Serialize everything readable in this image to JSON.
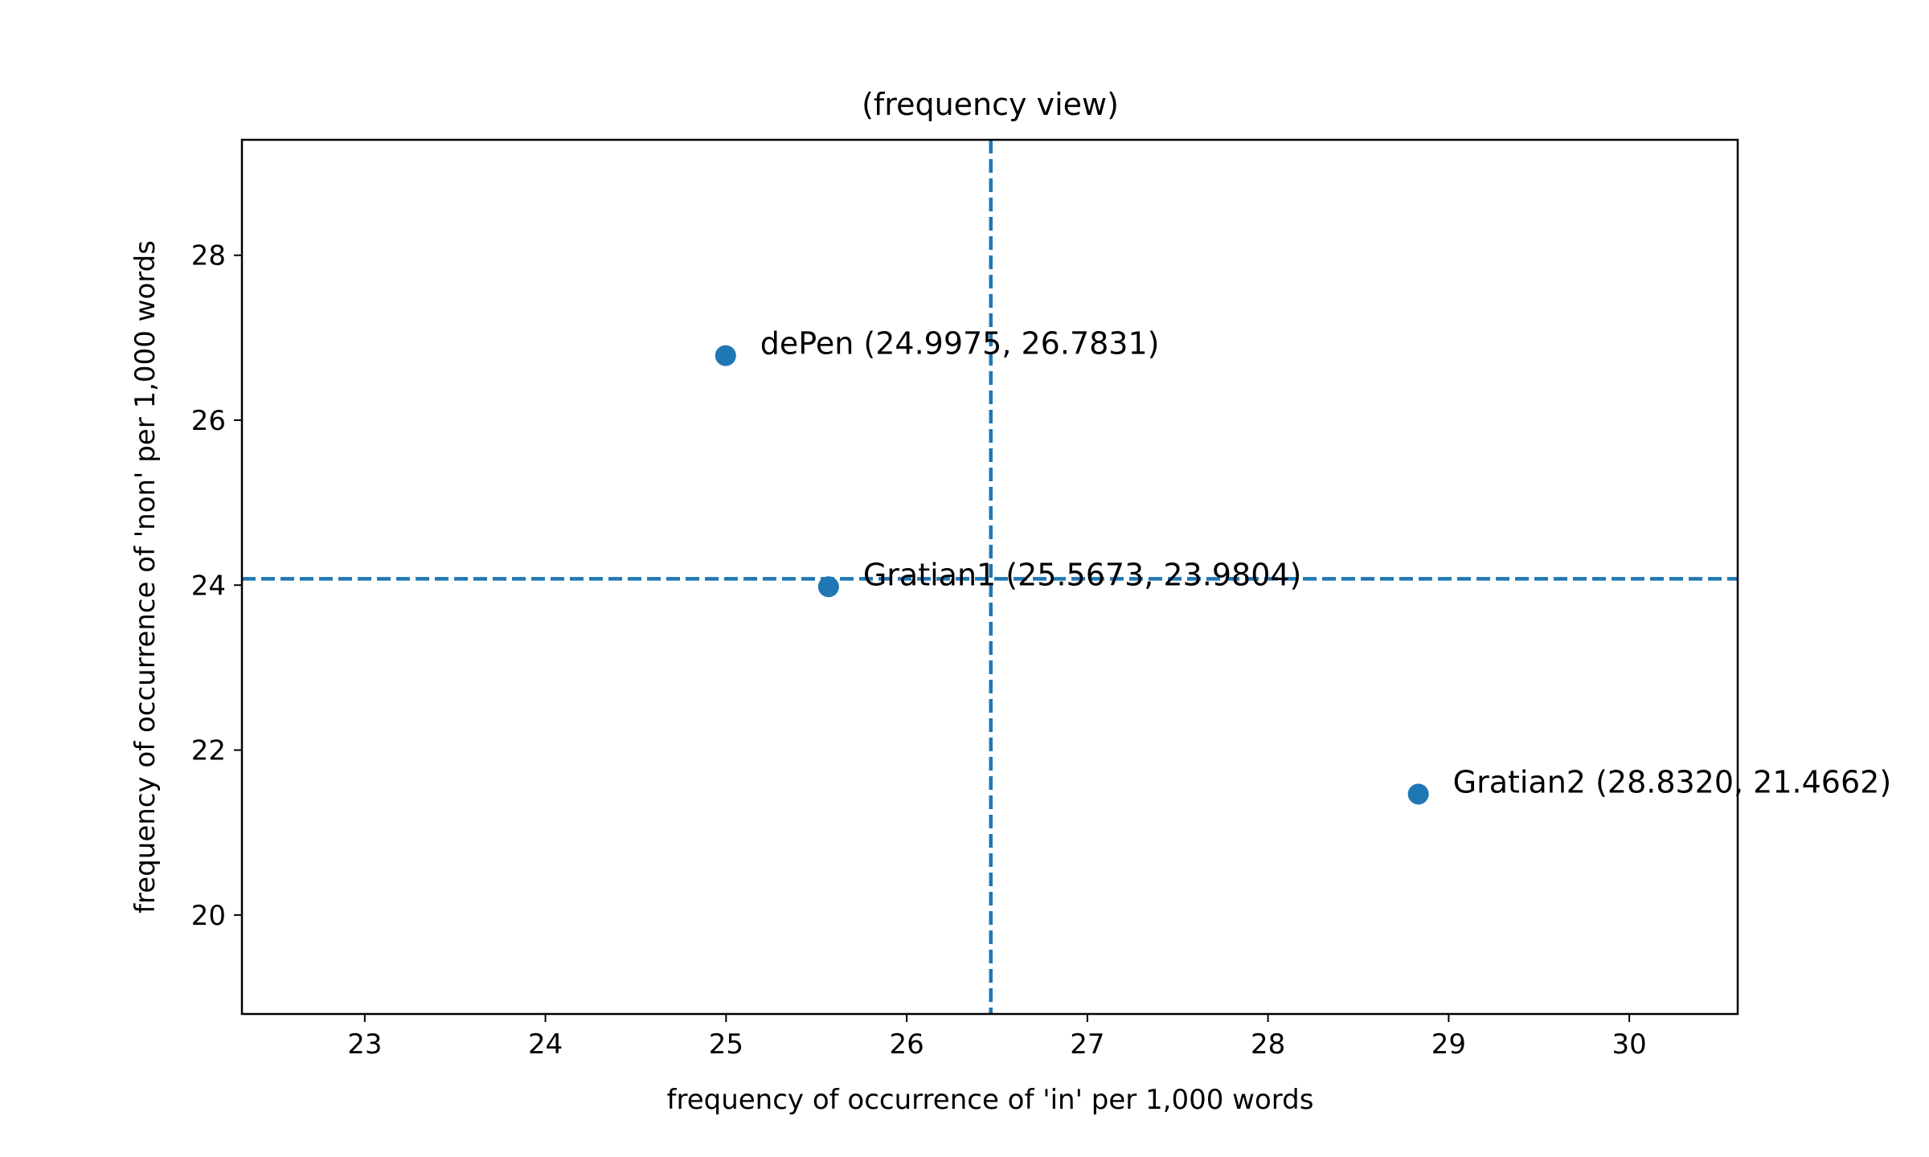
{
  "chart_data": {
    "type": "scatter",
    "title": "(frequency view)",
    "xlabel": "frequency of occurrence of 'in' per 1,000 words",
    "ylabel": "frequency of occurrence of 'non' per 1,000 words",
    "xlim": [
      22.32,
      30.6
    ],
    "ylim": [
      18.8,
      29.4
    ],
    "xticks": [
      23,
      24,
      25,
      26,
      27,
      28,
      29,
      30
    ],
    "yticks": [
      20,
      22,
      24,
      26,
      28
    ],
    "grid": false,
    "color": "#1f77b4",
    "points": [
      {
        "x": 24.9975,
        "y": 26.7831,
        "label": "dePen (24.9975, 26.7831)"
      },
      {
        "x": 25.5673,
        "y": 23.9804,
        "label": "Gratian1 (25.5673, 23.9804)"
      },
      {
        "x": 28.832,
        "y": 21.4662,
        "label": "Gratian2 (28.8320, 21.4662)"
      }
    ],
    "reference_lines": {
      "vertical_x": 26.4656,
      "horizontal_y": 24.0766,
      "style": "dashed"
    }
  }
}
